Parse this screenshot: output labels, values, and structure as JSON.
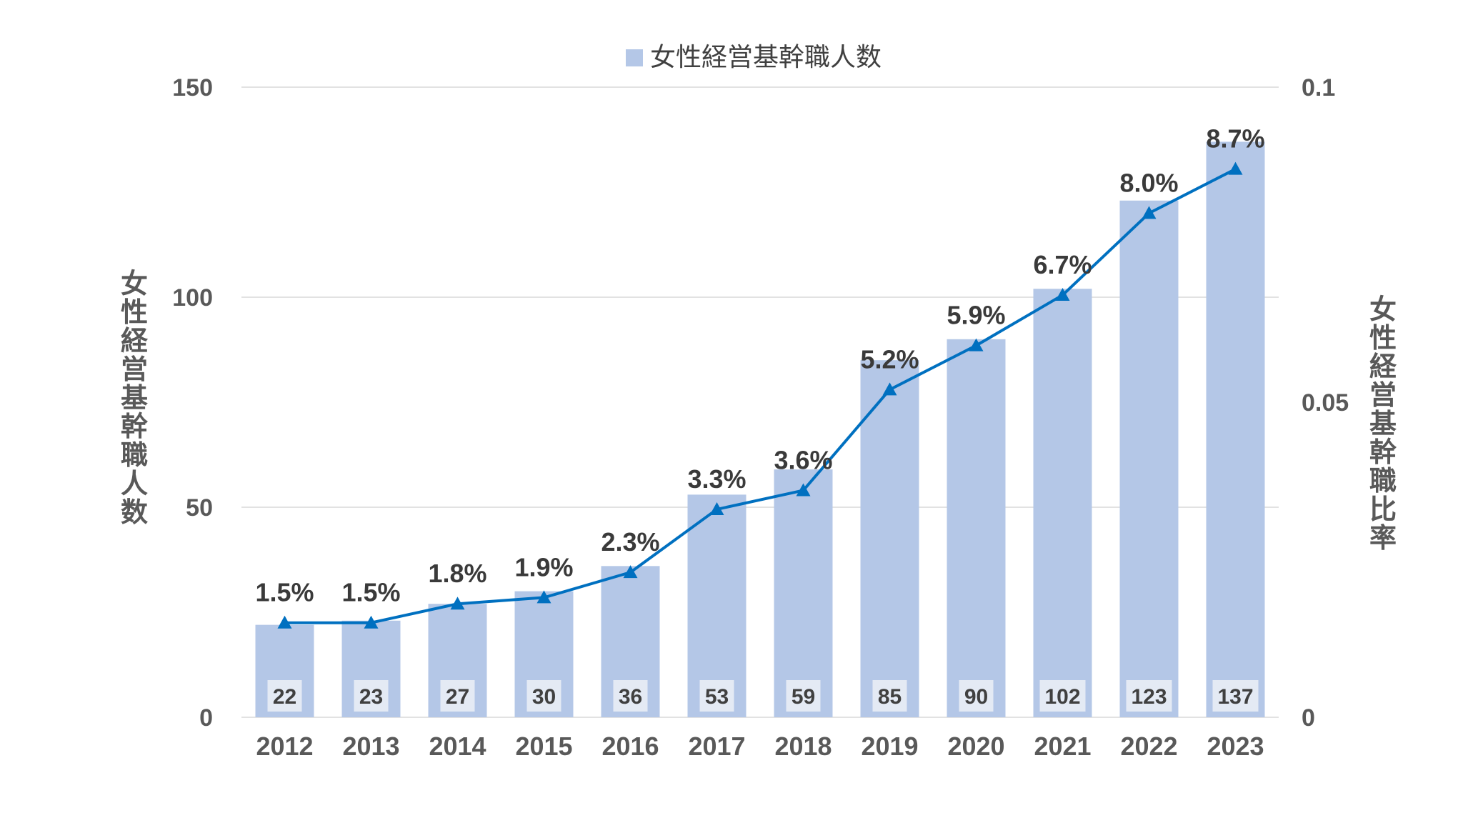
{
  "chart_data": {
    "type": "bar",
    "categories": [
      "2012",
      "2013",
      "2014",
      "2015",
      "2016",
      "2017",
      "2018",
      "2019",
      "2020",
      "2021",
      "2022",
      "2023"
    ],
    "series": [
      {
        "name": "女性経営基幹職人数",
        "type": "bar",
        "axis": "left",
        "values": [
          22,
          23,
          27,
          30,
          36,
          53,
          59,
          85,
          90,
          102,
          123,
          137
        ],
        "color": "#b4c7e7"
      },
      {
        "name": "女性経営基幹職比率",
        "type": "line",
        "axis": "right",
        "values": [
          0.015,
          0.015,
          0.018,
          0.019,
          0.023,
          0.033,
          0.036,
          0.052,
          0.059,
          0.067,
          0.08,
          0.087
        ],
        "labels": [
          "1.5%",
          "1.5%",
          "1.8%",
          "1.9%",
          "2.3%",
          "3.3%",
          "3.6%",
          "5.2%",
          "5.9%",
          "6.7%",
          "8.0%",
          "8.7%"
        ],
        "color": "#0070c0",
        "marker": "triangle"
      }
    ],
    "value_labels": [
      "22",
      "23",
      "27",
      "30",
      "36",
      "53",
      "59",
      "85",
      "90",
      "102",
      "123",
      "137"
    ],
    "legend": {
      "label": "女性経営基幹職人数",
      "position": "top"
    },
    "y_left": {
      "title": "女性経営基幹職人数",
      "ylim": [
        0,
        150
      ],
      "ticks": [
        "0",
        "50",
        "100",
        "150"
      ],
      "tick_values": [
        0,
        50,
        100,
        150
      ]
    },
    "y_right": {
      "title": "女性経営基幹職比率",
      "ylim": [
        0,
        0.1
      ],
      "ticks": [
        "0",
        "0.05",
        "0.1"
      ],
      "tick_values": [
        0,
        0.05,
        0.1
      ]
    },
    "grid": true
  }
}
